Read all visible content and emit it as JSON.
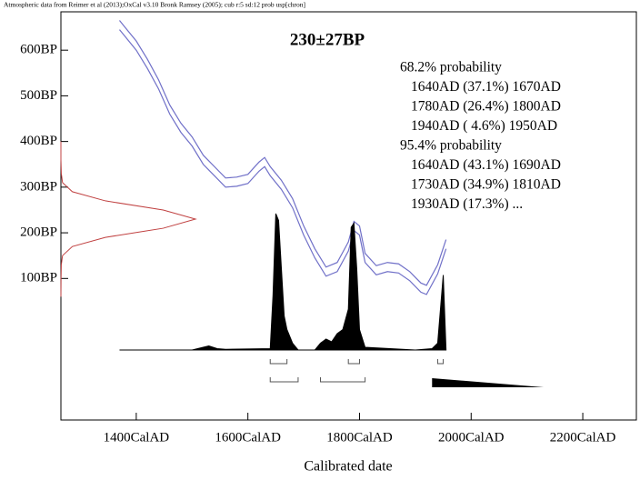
{
  "chart_data": {
    "type": "calibration",
    "header": "Atmospheric data from Reimer et al (2013);OxCal v3.10 Bronk Ramsey (2005); cub r:5 sd:12 prob usp[chron]",
    "title": "230±27BP",
    "xlabel": "Calibrated date",
    "xlim": [
      1265,
      2296
    ],
    "xticks": [
      {
        "value": 1400,
        "label": "1400CalAD"
      },
      {
        "value": 1600,
        "label": "1600CalAD"
      },
      {
        "value": 1800,
        "label": "1800CalAD"
      },
      {
        "value": 2000,
        "label": "2000CalAD"
      },
      {
        "value": 2200,
        "label": "2200CalAD"
      }
    ],
    "ylim": [
      -210,
      684
    ],
    "yticks": [
      {
        "value": 100,
        "label": "100BP"
      },
      {
        "value": 200,
        "label": "200BP"
      },
      {
        "value": 300,
        "label": "300BP"
      },
      {
        "value": 400,
        "label": "400BP"
      },
      {
        "value": 500,
        "label": "500BP"
      },
      {
        "value": 600,
        "label": "600BP"
      }
    ],
    "calibration": {
      "x": [
        1370,
        1380,
        1400,
        1420,
        1440,
        1460,
        1480,
        1500,
        1520,
        1540,
        1560,
        1580,
        1600,
        1620,
        1630,
        1640,
        1660,
        1680,
        1700,
        1720,
        1740,
        1760,
        1780,
        1790,
        1800,
        1810,
        1830,
        1850,
        1870,
        1890,
        1910,
        1920,
        1940,
        1955
      ],
      "series": [
        {
          "color": "#7070c8",
          "values": [
            665,
            650,
            620,
            580,
            535,
            480,
            440,
            410,
            370,
            345,
            320,
            322,
            328,
            355,
            365,
            345,
            315,
            275,
            215,
            165,
            125,
            135,
            180,
            225,
            215,
            155,
            128,
            135,
            132,
            115,
            90,
            85,
            130,
            185
          ]
        },
        {
          "color": "#7070c8",
          "values": [
            645,
            630,
            600,
            560,
            515,
            460,
            420,
            390,
            350,
            325,
            300,
            302,
            308,
            335,
            345,
            325,
            295,
            255,
            195,
            145,
            105,
            115,
            160,
            205,
            195,
            135,
            108,
            115,
            112,
            95,
            70,
            65,
            110,
            165
          ]
        }
      ]
    },
    "probability": {
      "color": "#000000",
      "x": [
        1370,
        1500,
        1520,
        1530,
        1545,
        1560,
        1640,
        1645,
        1650,
        1655,
        1660,
        1665,
        1670,
        1680,
        1690,
        1720,
        1730,
        1740,
        1750,
        1760,
        1770,
        1780,
        1785,
        1790,
        1795,
        1800,
        1810,
        1900,
        1930,
        1940,
        1945,
        1950,
        1955
      ],
      "values": [
        0,
        0,
        2,
        3,
        1,
        0.5,
        1,
        40,
        100,
        95,
        60,
        25,
        15,
        5,
        0,
        0,
        5,
        8,
        6,
        12,
        15,
        30,
        90,
        93,
        60,
        15,
        2,
        0,
        1,
        5,
        30,
        55,
        0
      ]
    },
    "c14": {
      "color": "#c04040",
      "bp": [
        60,
        100,
        130,
        150,
        170,
        190,
        210,
        230,
        250,
        270,
        290,
        310,
        330,
        360,
        400
      ],
      "density": [
        0,
        0.001,
        0.003,
        0.012,
        0.085,
        0.33,
        0.76,
        1,
        0.76,
        0.33,
        0.085,
        0.012,
        0.003,
        0,
        0
      ]
    },
    "intervals": [
      {
        "heading": "68.2% probability",
        "ranges": [
          {
            "text": "1640AD (37.1%) 1670AD",
            "from": 1640,
            "to": 1670
          },
          {
            "text": "1780AD (26.4%) 1800AD",
            "from": 1780,
            "to": 1800
          },
          {
            "text": "1940AD ( 4.6%) 1950AD",
            "from": 1940,
            "to": 1950
          }
        ]
      },
      {
        "heading": "95.4% probability",
        "ranges": [
          {
            "text": "1640AD (43.1%) 1690AD",
            "from": 1640,
            "to": 1690
          },
          {
            "text": "1730AD (34.9%) 1810AD",
            "from": 1730,
            "to": 1810
          },
          {
            "text": "1930AD (17.3%) ...",
            "from": 1930,
            "to": 2130
          }
        ]
      }
    ]
  }
}
